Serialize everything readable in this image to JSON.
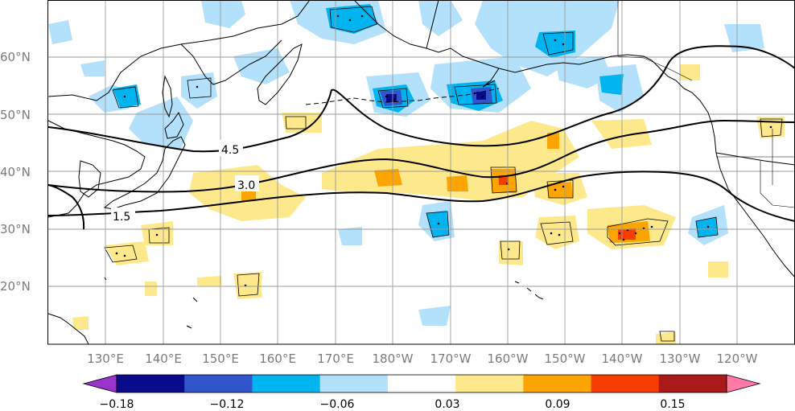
{
  "map": {
    "lon_labels": [
      "130°E",
      "140°E",
      "150°E",
      "160°E",
      "170°E",
      "180°W",
      "170°W",
      "160°W",
      "150°W",
      "140°W",
      "130°W",
      "120°W"
    ],
    "lat_labels": [
      "60°N",
      "50°N",
      "40°N",
      "30°N",
      "20°N"
    ],
    "contour_labels": [
      "4.5",
      "3.0",
      "1.5"
    ],
    "colors": {
      "strong_negative": "#0a0a8c",
      "mid_negative": "#3355cc",
      "negative": "#00b4f0",
      "weak_negative": "#b3e0fa",
      "weak_positive": "#fde98b",
      "positive": "#fca500",
      "strong_positive": "#f83d00",
      "land_line": "#000000",
      "grid": "#9a9a9a"
    }
  },
  "colorbar": {
    "labels": [
      "−0.18",
      "−0.12",
      "−0.06",
      "0.03",
      "0.09",
      "0.15"
    ],
    "colors": [
      "#9933cc",
      "#0a0a8c",
      "#3355cc",
      "#00b4f0",
      "#b3e0fa",
      "#ffffff",
      "#fde98b",
      "#fca500",
      "#f83d00",
      "#aa1a1a",
      "#ff7ba6"
    ]
  }
}
